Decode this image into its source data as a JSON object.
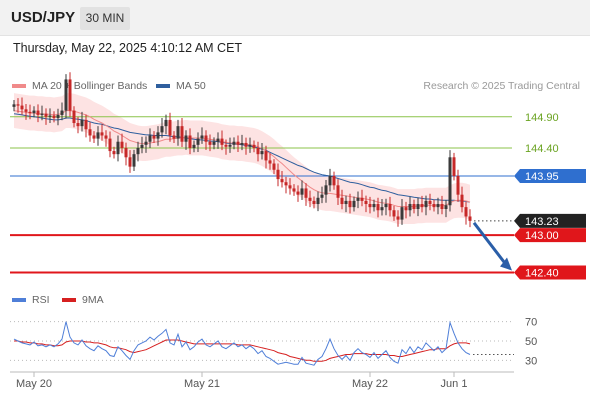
{
  "header": {
    "symbol": "USD/JPY",
    "timeframe": "30 MIN",
    "datetime": "Thursday, May 22, 2025 4:10:12 AM CET"
  },
  "legend": {
    "ma20_label": "MA 20 + Bollinger Bands",
    "ma50_label": "MA 50",
    "credit": "Research © 2025 Trading Central",
    "rsi_label": "RSI",
    "ma9_label": "9MA"
  },
  "colors": {
    "up": "#3a3a3a",
    "down": "#c62828",
    "boll_band": "#fde0e0",
    "ma20": "#f08a8a",
    "ma50": "#2f5f9e",
    "resistance": "#8bc34a",
    "pivot": "#2f6fcf",
    "support": "#e0161b",
    "arrow": "#2a5ea8",
    "rsi": "#4f7fd8",
    "rsi_ma": "#d62020"
  },
  "chart_data": [
    {
      "type": "candlestick",
      "title": "",
      "x_labels": [
        "May 20",
        "May 21",
        "May 22",
        "Jun 1"
      ],
      "ylim": [
        142.2,
        145.25
      ],
      "last_price": 143.23,
      "levels": [
        {
          "value": 144.9,
          "label": "144.90",
          "kind": "resistance"
        },
        {
          "value": 144.4,
          "label": "144.40",
          "kind": "resistance"
        },
        {
          "value": 143.95,
          "label": "143.95",
          "kind": "pivot"
        },
        {
          "value": 143.0,
          "label": "143.00",
          "kind": "support"
        },
        {
          "value": 142.4,
          "label": "142.40",
          "kind": "support"
        }
      ],
      "target": 142.4,
      "closes": [
        145.1,
        145.08,
        145.02,
        144.98,
        144.96,
        145.0,
        144.93,
        144.95,
        144.9,
        144.92,
        144.88,
        144.93,
        145.0,
        145.5,
        145.0,
        144.8,
        144.75,
        144.85,
        144.7,
        144.6,
        144.55,
        144.65,
        144.6,
        144.55,
        144.35,
        144.3,
        144.5,
        144.4,
        144.25,
        144.1,
        144.3,
        144.4,
        144.45,
        144.5,
        144.6,
        144.55,
        144.65,
        144.75,
        144.85,
        144.6,
        144.55,
        144.75,
        144.5,
        144.6,
        144.4,
        144.45,
        144.55,
        144.6,
        144.5,
        144.45,
        144.5,
        144.55,
        144.45,
        144.42,
        144.45,
        144.5,
        144.45,
        144.48,
        144.42,
        144.45,
        144.4,
        144.3,
        144.35,
        144.2,
        144.15,
        144.05,
        143.9,
        143.85,
        143.8,
        143.75,
        143.7,
        143.65,
        143.75,
        143.6,
        143.55,
        143.5,
        143.6,
        143.65,
        143.8,
        143.95,
        143.8,
        143.6,
        143.5,
        143.55,
        143.45,
        143.55,
        143.6,
        143.55,
        143.5,
        143.45,
        143.5,
        143.4,
        143.45,
        143.5,
        143.4,
        143.3,
        143.25,
        143.45,
        143.4,
        143.5,
        143.42,
        143.5,
        143.45,
        143.55,
        143.5,
        143.45,
        143.5,
        143.42,
        143.48,
        144.25,
        143.95,
        143.65,
        143.45,
        143.3,
        143.23
      ],
      "ma50": [
        144.95,
        144.94,
        144.93,
        144.92,
        144.91,
        144.9,
        144.89,
        144.88,
        144.87,
        144.86,
        144.85,
        144.85,
        144.86,
        144.88,
        144.88,
        144.87,
        144.86,
        144.85,
        144.84,
        144.82,
        144.8,
        144.79,
        144.78,
        144.76,
        144.74,
        144.72,
        144.71,
        144.69,
        144.67,
        144.65,
        144.64,
        144.63,
        144.62,
        144.61,
        144.61,
        144.6,
        144.6,
        144.6,
        144.6,
        144.59,
        144.58,
        144.58,
        144.57,
        144.56,
        144.55,
        144.54,
        144.53,
        144.53,
        144.52,
        144.51,
        144.51,
        144.5,
        144.49,
        144.48,
        144.47,
        144.47,
        144.46,
        144.45,
        144.44,
        144.43,
        144.42,
        144.4,
        144.38,
        144.36,
        144.33,
        144.3,
        144.27,
        144.24,
        144.21,
        144.18,
        144.15,
        144.12,
        144.1,
        144.07,
        144.04,
        144.01,
        143.99,
        143.97,
        143.96,
        143.95,
        143.93,
        143.91,
        143.89,
        143.87,
        143.85,
        143.84,
        143.83,
        143.81,
        143.79,
        143.77,
        143.76,
        143.74,
        143.72,
        143.71,
        143.69,
        143.67,
        143.65,
        143.64,
        143.63,
        143.62,
        143.61,
        143.6,
        143.59,
        143.58,
        143.58,
        143.57,
        143.57,
        143.56,
        143.56,
        143.56,
        143.56,
        143.55,
        143.55,
        143.54,
        143.53
      ],
      "ma20": [
        145.0,
        144.99,
        144.98,
        144.97,
        144.96,
        144.96,
        144.95,
        144.95,
        144.94,
        144.94,
        144.93,
        144.94,
        144.95,
        145.0,
        145.0,
        144.99,
        144.97,
        144.95,
        144.93,
        144.9,
        144.86,
        144.83,
        144.8,
        144.76,
        144.72,
        144.67,
        144.64,
        144.6,
        144.56,
        144.52,
        144.5,
        144.48,
        144.47,
        144.47,
        144.48,
        144.49,
        144.5,
        144.52,
        144.54,
        144.54,
        144.55,
        144.56,
        144.56,
        144.57,
        144.56,
        144.56,
        144.56,
        144.56,
        144.55,
        144.54,
        144.53,
        144.52,
        144.5,
        144.49,
        144.48,
        144.48,
        144.47,
        144.47,
        144.46,
        144.45,
        144.44,
        144.42,
        144.39,
        144.35,
        144.31,
        144.26,
        144.2,
        144.15,
        144.09,
        144.03,
        143.97,
        143.92,
        143.87,
        143.82,
        143.77,
        143.73,
        143.7,
        143.68,
        143.67,
        143.67,
        143.66,
        143.65,
        143.64,
        143.63,
        143.62,
        143.61,
        143.6,
        143.59,
        143.58,
        143.57,
        143.55,
        143.53,
        143.52,
        143.51,
        143.5,
        143.48,
        143.46,
        143.46,
        143.46,
        143.46,
        143.46,
        143.47,
        143.47,
        143.48,
        143.48,
        143.48,
        143.48,
        143.48,
        143.48,
        143.52,
        143.55,
        143.56,
        143.56,
        143.55,
        143.53
      ],
      "x_tick_index": [
        5,
        47,
        89,
        110
      ]
    },
    {
      "type": "line",
      "title": "RSI",
      "ylim": [
        20,
        80
      ],
      "yticks": [
        30,
        50,
        70
      ],
      "series": [
        {
          "name": "RSI",
          "values": [
            52,
            50,
            48,
            47,
            46,
            49,
            45,
            46,
            44,
            46,
            44,
            47,
            52,
            70,
            54,
            48,
            46,
            51,
            45,
            42,
            40,
            45,
            42,
            40,
            35,
            34,
            44,
            40,
            35,
            31,
            40,
            46,
            48,
            50,
            54,
            51,
            55,
            58,
            62,
            48,
            46,
            57,
            44,
            49,
            41,
            44,
            49,
            52,
            46,
            44,
            47,
            50,
            44,
            42,
            45,
            48,
            44,
            46,
            42,
            45,
            42,
            37,
            40,
            34,
            32,
            29,
            26,
            27,
            28,
            27,
            26,
            26,
            33,
            27,
            26,
            25,
            31,
            34,
            42,
            52,
            42,
            35,
            31,
            35,
            30,
            38,
            42,
            38,
            36,
            33,
            38,
            32,
            36,
            40,
            33,
            29,
            27,
            41,
            37,
            44,
            38,
            44,
            41,
            48,
            44,
            40,
            44,
            38,
            42,
            69,
            58,
            48,
            42,
            38,
            36
          ]
        },
        {
          "name": "9MA",
          "values": [
            50,
            50,
            49,
            49,
            48,
            48,
            47,
            47,
            46,
            46,
            45,
            45,
            46,
            49,
            50,
            50,
            50,
            50,
            49,
            49,
            48,
            48,
            47,
            46,
            44,
            43,
            43,
            42,
            41,
            39,
            38,
            39,
            40,
            41,
            43,
            45,
            47,
            49,
            51,
            51,
            51,
            51,
            50,
            49,
            48,
            47,
            47,
            47,
            47,
            47,
            47,
            47,
            47,
            47,
            47,
            47,
            46,
            46,
            46,
            46,
            45,
            44,
            43,
            42,
            41,
            40,
            38,
            37,
            36,
            34,
            33,
            32,
            31,
            30,
            30,
            29,
            29,
            29,
            30,
            32,
            33,
            34,
            35,
            36,
            36,
            37,
            37,
            37,
            37,
            36,
            36,
            36,
            36,
            36,
            35,
            35,
            34,
            34,
            35,
            36,
            37,
            38,
            39,
            40,
            41,
            41,
            42,
            42,
            42,
            45,
            47,
            48,
            48,
            48,
            47
          ]
        }
      ]
    }
  ]
}
